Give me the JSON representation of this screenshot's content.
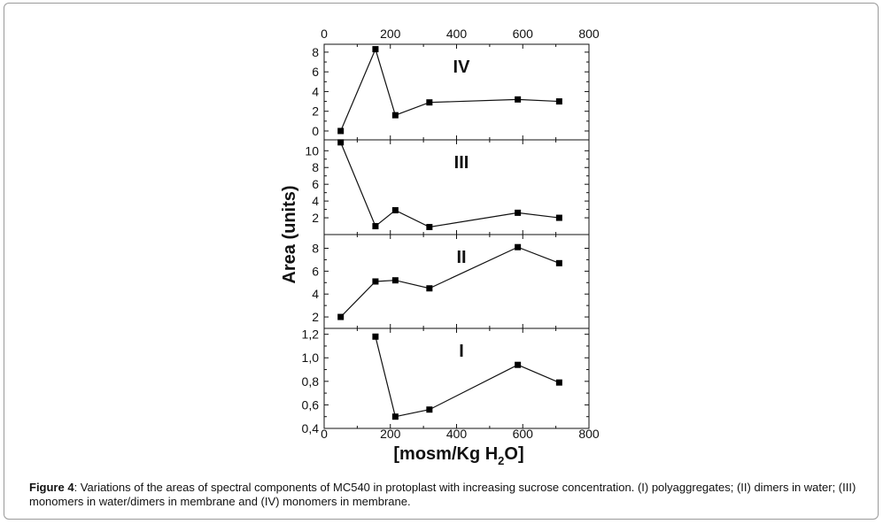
{
  "caption": {
    "label": "Figure 4",
    "text": ": Variations of the areas of spectral components of MC540 in protoplast with increasing sucrose concentration. (I) polyaggregates; (II) dimers in water; (III) monomers in water/dimers in membrane and (IV) monomers in membrane."
  },
  "colors": {
    "line": "#111111",
    "marker": "#000000",
    "frame": "#9a9a9a"
  },
  "chart_data": {
    "type": "line",
    "ylabel": "Area (units)",
    "xlabel": "[mosm/Kg H2O]",
    "xlabel_parts": {
      "main": "[mosm/Kg H",
      "sub": "2",
      "tail": "O]"
    },
    "xlim": [
      0,
      800
    ],
    "x_ticks": [
      "0",
      "200",
      "400",
      "600",
      "800"
    ],
    "panels": [
      {
        "name": "IV",
        "x": [
          50,
          155,
          215,
          318,
          585,
          710
        ],
        "values": [
          0.0,
          8.3,
          1.6,
          2.9,
          3.2,
          3.0
        ],
        "ylim": [
          -0.9,
          8.8
        ],
        "y_ticks": [
          0,
          2,
          4,
          6,
          8
        ],
        "y_tick_labels": [
          "0",
          "2",
          "4",
          "6",
          "8"
        ]
      },
      {
        "name": "III",
        "x": [
          50,
          155,
          215,
          318,
          585,
          710
        ],
        "values": [
          11.0,
          1.0,
          2.9,
          0.9,
          2.6,
          2.0
        ],
        "ylim": [
          0.0,
          11.3
        ],
        "y_ticks": [
          2,
          4,
          6,
          8,
          10
        ],
        "y_tick_labels": [
          "2",
          "4",
          "6",
          "8",
          "10"
        ]
      },
      {
        "name": "II",
        "x": [
          50,
          155,
          215,
          318,
          585,
          710
        ],
        "values": [
          2.0,
          5.1,
          5.2,
          4.5,
          8.1,
          6.7
        ],
        "ylim": [
          1.0,
          9.2
        ],
        "y_ticks": [
          2,
          4,
          6,
          8
        ],
        "y_tick_labels": [
          "2",
          "4",
          "6",
          "8"
        ]
      },
      {
        "name": "I",
        "x": [
          155,
          215,
          318,
          585,
          710
        ],
        "values": [
          1.18,
          0.5,
          0.56,
          0.94,
          0.79
        ],
        "ylim": [
          0.4,
          1.25
        ],
        "y_ticks": [
          0.4,
          0.6,
          0.8,
          1.0,
          1.2
        ],
        "y_tick_labels": [
          "0,4",
          "0,6",
          "0,8",
          "1,0",
          "1,2"
        ]
      }
    ]
  }
}
